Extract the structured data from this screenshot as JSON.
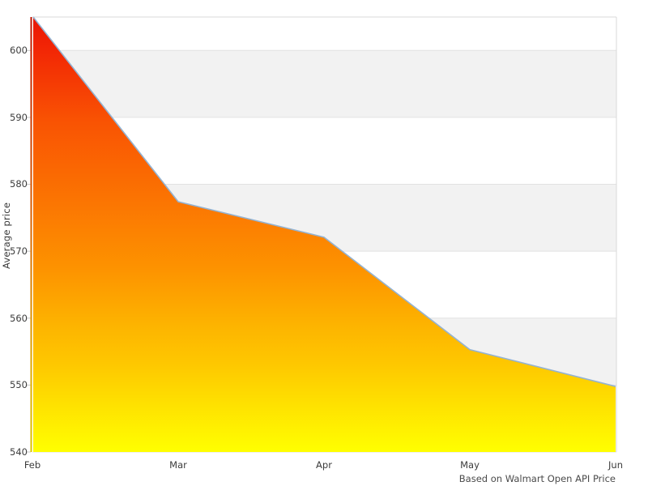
{
  "chart_data": {
    "type": "area",
    "categories": [
      "Feb",
      "Mar",
      "Apr",
      "May",
      "Jun"
    ],
    "values": [
      605,
      577.4,
      572.1,
      555.3,
      549.8
    ],
    "title": "",
    "xlabel": "",
    "ylabel": "Average price",
    "ylim": [
      540,
      605
    ],
    "yticks": [
      540,
      550,
      560,
      570,
      580,
      590,
      600
    ],
    "caption": "Based on Walmart Open API Price",
    "legend": "none",
    "grid": "alternating-horizontal-bands",
    "band_ranges": [
      [
        590,
        600
      ],
      [
        570,
        580
      ],
      [
        550,
        560
      ]
    ],
    "colors": {
      "fill_gradient_top_to_bottom": [
        "#e81404",
        "#f22505",
        "#f95303",
        "#fb7602",
        "#fd9300",
        "#fdb400",
        "#fec800",
        "#ffff00"
      ],
      "line": "#94b3d2",
      "left_edge_gradient": [
        "#bb1200",
        "#d85e00",
        "#dfa800",
        "#ddc400"
      ],
      "band": "#f2f2f2",
      "gridline": "#e2e2e2",
      "border": "#d9d9d9",
      "tick_mark": "#c9c9c9",
      "text": "#3c3c3c"
    }
  }
}
